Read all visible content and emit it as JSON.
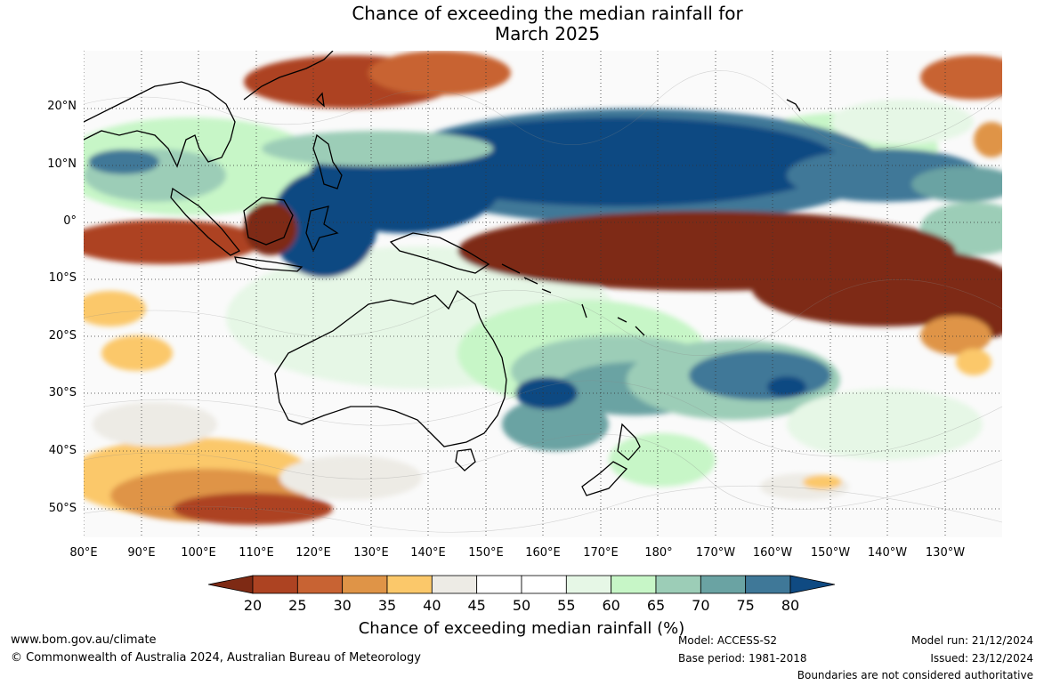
{
  "title_line1": "Chance of exceeding the median rainfall for",
  "title_line2": "March 2025",
  "lat_labels": [
    "20°N",
    "10°N",
    "0°",
    "10°S",
    "20°S",
    "30°S",
    "40°S",
    "50°S"
  ],
  "lon_labels": [
    "80°E",
    "90°E",
    "100°E",
    "110°E",
    "120°E",
    "130°E",
    "140°E",
    "150°E",
    "160°E",
    "170°E",
    "180°",
    "170°W",
    "160°W",
    "150°W",
    "140°W",
    "130°W"
  ],
  "colorbar": {
    "ticks": [
      "20",
      "25",
      "30",
      "35",
      "40",
      "45",
      "50",
      "55",
      "60",
      "65",
      "70",
      "75",
      "80"
    ],
    "colors": [
      "#7e2a14",
      "#ad4322",
      "#c86333",
      "#df9447",
      "#fbc86a",
      "#edebe5",
      "#ffffff",
      "#ffffff",
      "#e6f7e6",
      "#c7f6c7",
      "#9ccdb7",
      "#6aa3a3",
      "#3f7898",
      "#0f4a82"
    ],
    "title": "Chance of exceeding median rainfall (%)"
  },
  "footer": {
    "website": "www.bom.gov.au/climate",
    "copyright": "© Commonwealth of Australia 2024, Australian Bureau of Meteorology",
    "model": "Model: ACCESS-S2",
    "base_period": "Base period: 1981-2018",
    "model_run": "Model run: 21/12/2024",
    "issued": "Issued: 23/12/2024",
    "boundaries": "Boundaries are not considered authoritative"
  }
}
